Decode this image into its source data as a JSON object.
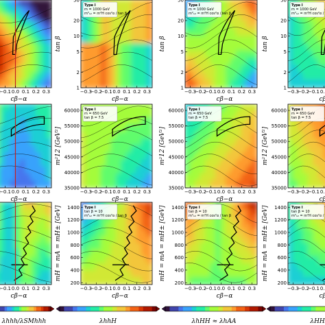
{
  "chart_data": {
    "type": "heatmap",
    "layout": "3x4 grid, cropped",
    "columns": [
      {
        "colorbar_label": "λhhh/λSMhhh"
      },
      {
        "colorbar_label": "λhhH"
      },
      {
        "colorbar_label": "λhHH ≈ λhAA"
      },
      {
        "colorbar_label": "λHHH"
      }
    ],
    "rows": [
      {
        "xlabel": "cβ−α",
        "ylabel": "tan β",
        "x_ticks": [
          "−0.3",
          "−0.2",
          "−0.1",
          "0.0",
          "0.1",
          "0.2",
          "0.3"
        ],
        "y_ticks": [
          "1",
          "2",
          "5",
          "10",
          "20",
          "50"
        ],
        "x_range": [
          -0.35,
          0.35
        ],
        "y_range": [
          1,
          50
        ],
        "y_scale": "log",
        "legend_lines": [
          "Type I",
          "m = 1000 GeV",
          "m²₁₂ = m²H cos²α / tan β"
        ]
      },
      {
        "xlabel": "cβ−α",
        "ylabel": "m²12 [GeV²]",
        "x_ticks": [
          "−0.3",
          "−0.2",
          "−0.1",
          "0.0",
          "0.1",
          "0.2",
          "0.3"
        ],
        "y_ticks": [
          "35000",
          "40000",
          "45000",
          "50000",
          "55000",
          "60000"
        ],
        "x_range": [
          -0.35,
          0.35
        ],
        "y_range": [
          35000,
          62000
        ],
        "y_scale": "linear",
        "legend_lines": [
          "Type I",
          "m = 650 GeV",
          "tan β = 7.5"
        ]
      },
      {
        "xlabel": "cβ−α",
        "ylabel": "mH = mA = mH± [GeV]",
        "x_ticks": [
          "−0.3",
          "−0.2",
          "−0.1",
          "0.0",
          "0.1",
          "0.2",
          "0.3"
        ],
        "y_ticks": [
          "200",
          "400",
          "600",
          "800",
          "1000",
          "1200",
          "1400"
        ],
        "x_range": [
          -0.35,
          0.35
        ],
        "y_range": [
          170,
          1480
        ],
        "y_scale": "linear",
        "legend_lines": [
          "Type I",
          "tan β = 10",
          "m²₁₂ = m²H cos²α / tan β"
        ]
      }
    ],
    "grid": false,
    "legend_placement": "top-left"
  },
  "colors": {
    "colormap": [
      "#30123b",
      "#4145ab",
      "#4675ed",
      "#39a2fc",
      "#1bcfd4",
      "#24eca6",
      "#61fc6c",
      "#a4fc3b",
      "#d1e834",
      "#f3c63a",
      "#fe9b2d",
      "#f36315",
      "#d93806",
      "#b11901",
      "#7a0402"
    ],
    "contour_line": "#000000",
    "boundary_line": "#c81e1e"
  }
}
